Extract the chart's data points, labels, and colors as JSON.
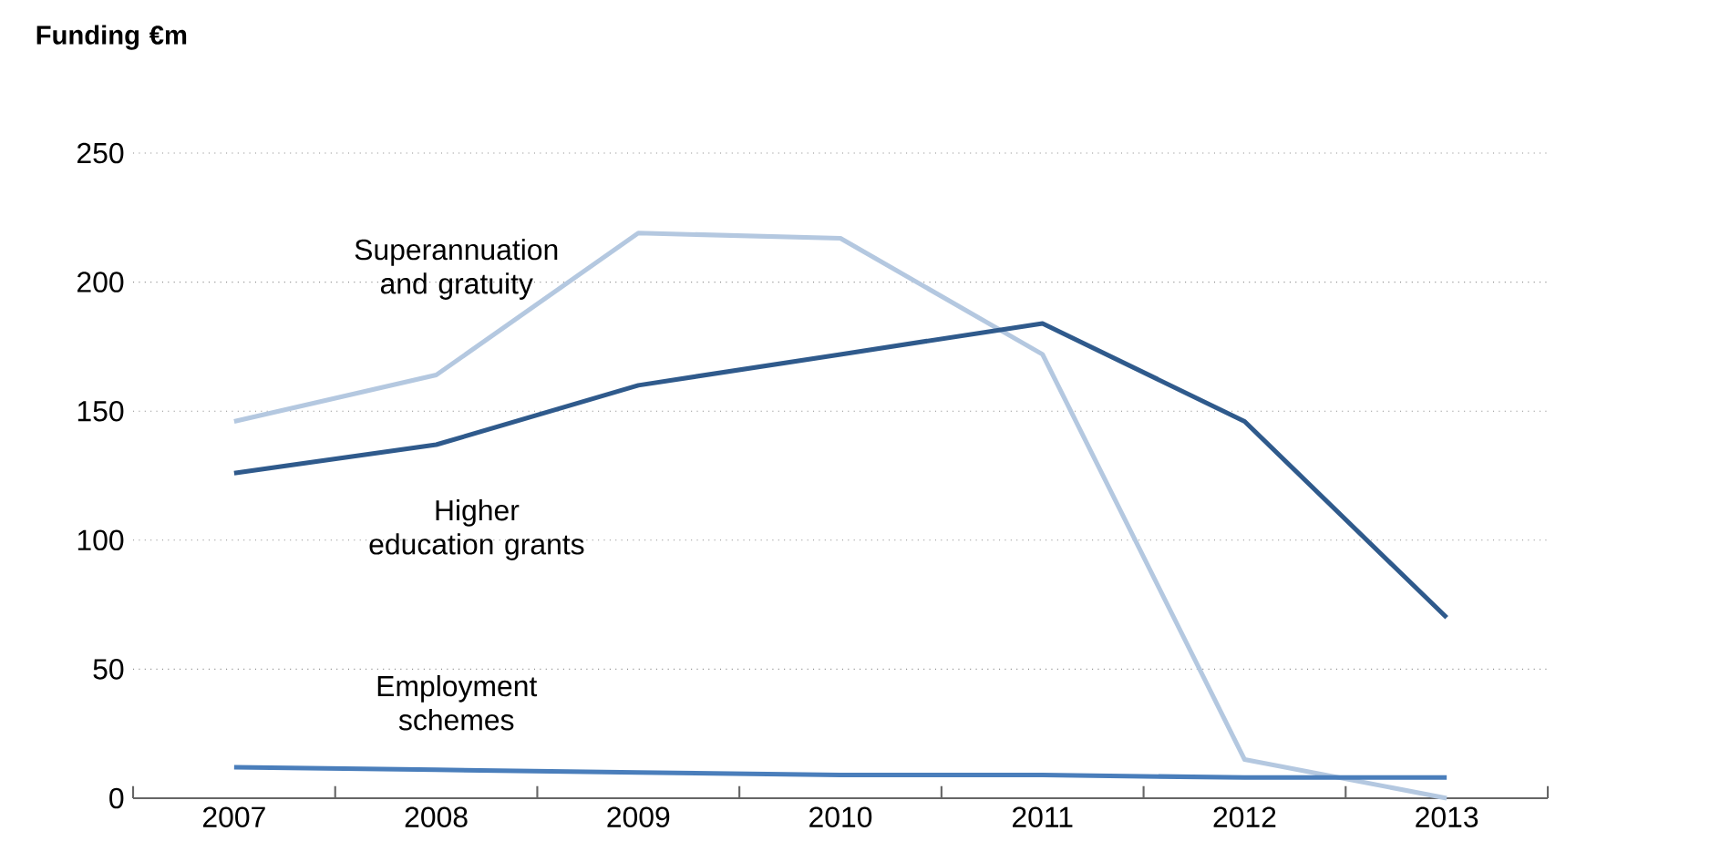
{
  "chart_data": {
    "type": "line",
    "ylabel": "**Funding €m**",
    "categories": [
      "2007",
      "2008",
      "2009",
      "2010",
      "2011",
      "2012",
      "2013"
    ],
    "series": [
      {
        "name": "Superannuation and gratuity",
        "color": "#b4c8e0",
        "values": [
          146,
          164,
          219,
          217,
          172,
          15,
          0
        ]
      },
      {
        "name": "Higher education grants",
        "color": "#2f5a8c",
        "values": [
          126,
          137,
          160,
          172,
          184,
          146,
          70
        ]
      },
      {
        "name": "Employment schemes",
        "color": "#4a7ebb",
        "values": [
          12,
          11,
          10,
          9,
          9,
          8,
          8
        ]
      }
    ],
    "ylim": [
      0,
      250
    ],
    "yticks": [
      0,
      50,
      100,
      150,
      200,
      250
    ],
    "grid": "y",
    "marker": "none",
    "line_style": "solid"
  }
}
